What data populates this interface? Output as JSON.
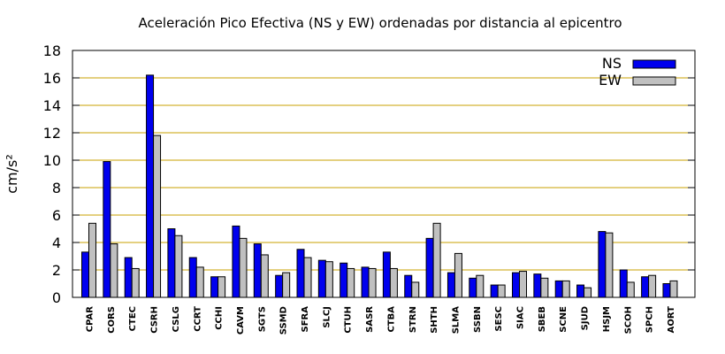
{
  "chart_data": {
    "type": "bar",
    "title": "Aceleración Pico Efectiva (NS y EW) ordenadas por distancia al epicentro",
    "ylabel": "cm/s²",
    "xlabel": "",
    "ylim": [
      0,
      18
    ],
    "yticks": [
      0,
      2,
      4,
      6,
      8,
      10,
      12,
      14,
      16,
      18
    ],
    "grid": true,
    "legend_position": "top-right",
    "categories": [
      "CPAR",
      "CORS",
      "CTEC",
      "CSRH",
      "CSLG",
      "CCRT",
      "CCHI",
      "CAVM",
      "SGTS",
      "SSMD",
      "SFRA",
      "SLCJ",
      "CTUH",
      "SASR",
      "CTBA",
      "STRN",
      "SHTH",
      "SLMA",
      "SSBN",
      "SESC",
      "SIAC",
      "SBEB",
      "SCNE",
      "SJUD",
      "HSJM",
      "SCOH",
      "SPCH",
      "AORT"
    ],
    "series": [
      {
        "name": "NS",
        "color": "#0000ee",
        "values": [
          3.3,
          9.9,
          2.9,
          16.2,
          5.0,
          2.9,
          1.5,
          5.2,
          3.9,
          1.6,
          3.5,
          2.7,
          2.5,
          2.2,
          3.3,
          1.6,
          4.3,
          1.8,
          1.4,
          0.9,
          1.8,
          1.7,
          1.2,
          0.9,
          4.8,
          2.0,
          1.5,
          1.0
        ]
      },
      {
        "name": "EW",
        "color": "#c0c0c0",
        "values": [
          5.4,
          3.9,
          2.1,
          11.8,
          4.5,
          2.2,
          1.5,
          4.3,
          3.1,
          1.8,
          2.9,
          2.6,
          2.1,
          2.1,
          2.1,
          1.1,
          5.4,
          3.2,
          1.6,
          0.9,
          1.9,
          1.4,
          1.2,
          0.7,
          4.7,
          1.1,
          1.6,
          1.2
        ]
      }
    ]
  }
}
